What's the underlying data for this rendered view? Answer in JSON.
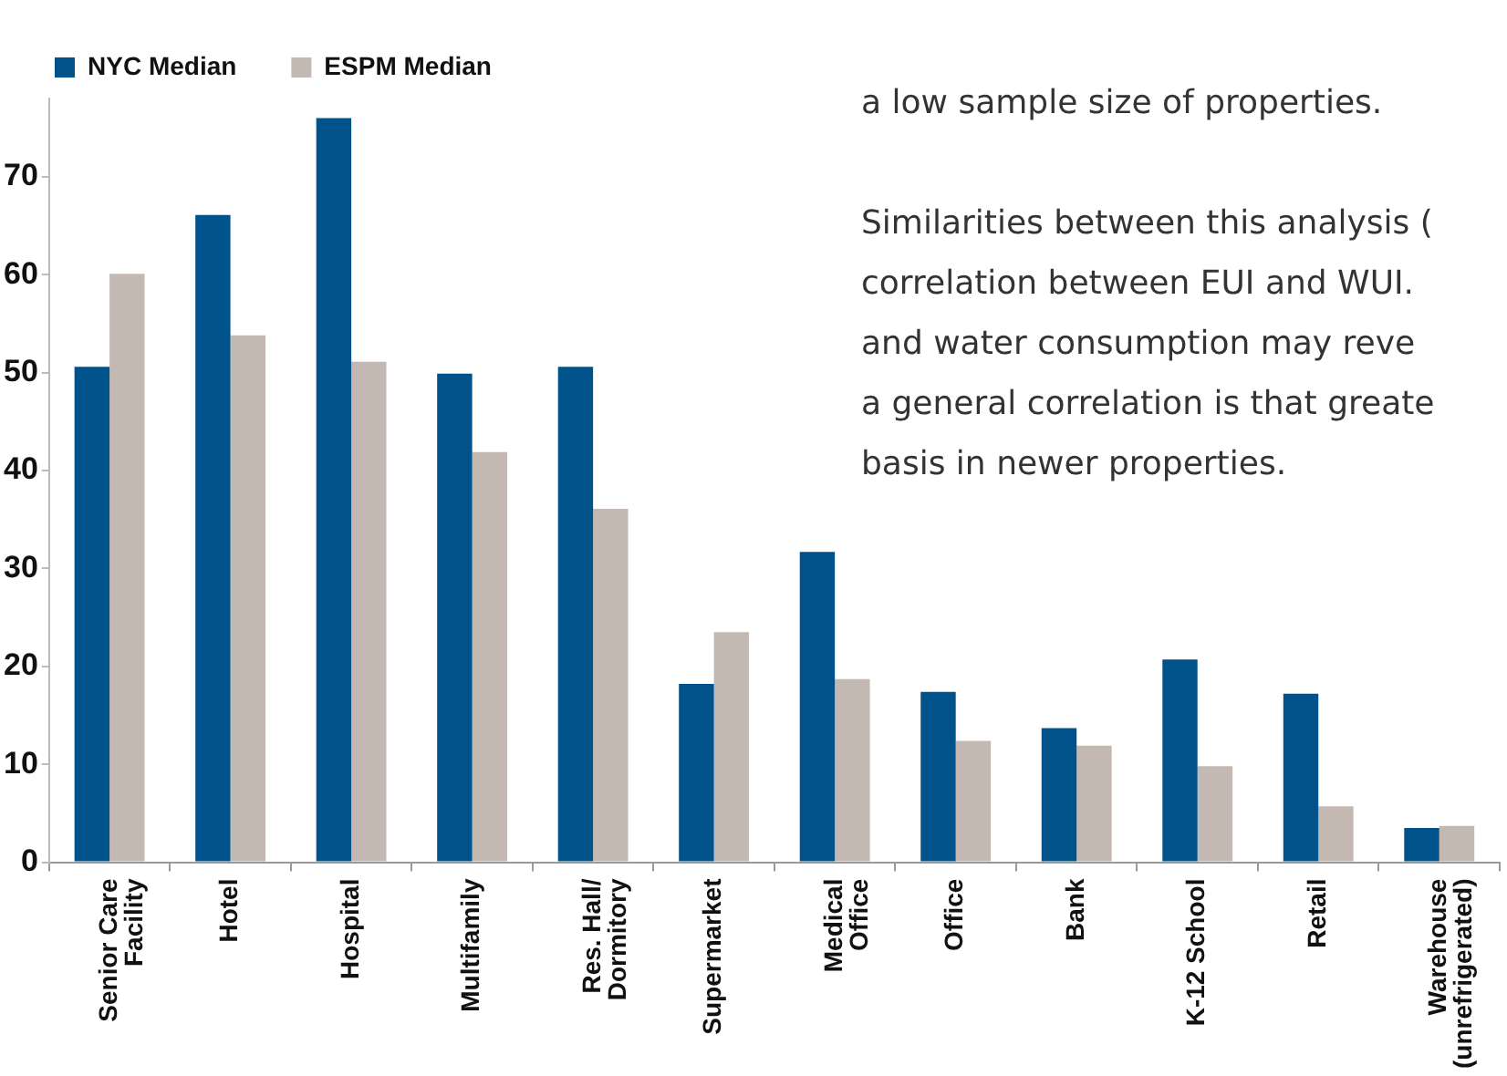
{
  "chart_data": {
    "type": "bar",
    "categories": [
      "Senior Care\nFacility",
      "Hotel",
      "Hospital",
      "Multifamily",
      "Res. Hall/\nDormitory",
      "Supermarket",
      "Medical\nOffice",
      "Office",
      "Bank",
      "K-12 School",
      "Retail",
      "Warehouse\n(unrefrigerated)"
    ],
    "series": [
      {
        "name": "NYC Median",
        "color": "#00538a",
        "values": [
          50.6,
          66.1,
          76.0,
          49.9,
          50.6,
          18.2,
          31.7,
          17.4,
          13.7,
          20.7,
          17.2,
          3.5
        ]
      },
      {
        "name": "ESPM Median",
        "color": "#c4b8b3",
        "values": [
          60.1,
          53.8,
          51.1,
          41.9,
          36.1,
          23.5,
          18.7,
          12.4,
          11.9,
          9.8,
          5.7,
          3.7
        ]
      }
    ],
    "ylim": [
      0,
      78
    ],
    "yticks": [
      0,
      10,
      20,
      30,
      40,
      50,
      60,
      70
    ],
    "grid": false,
    "legend": "top left",
    "annotations": [
      "a low sample size of properties.",
      "Similarities between this analysis (",
      "correlation between EUI and WUI.",
      "and water consumption may reve",
      "a general correlation is that greate",
      "basis in newer properties."
    ]
  }
}
